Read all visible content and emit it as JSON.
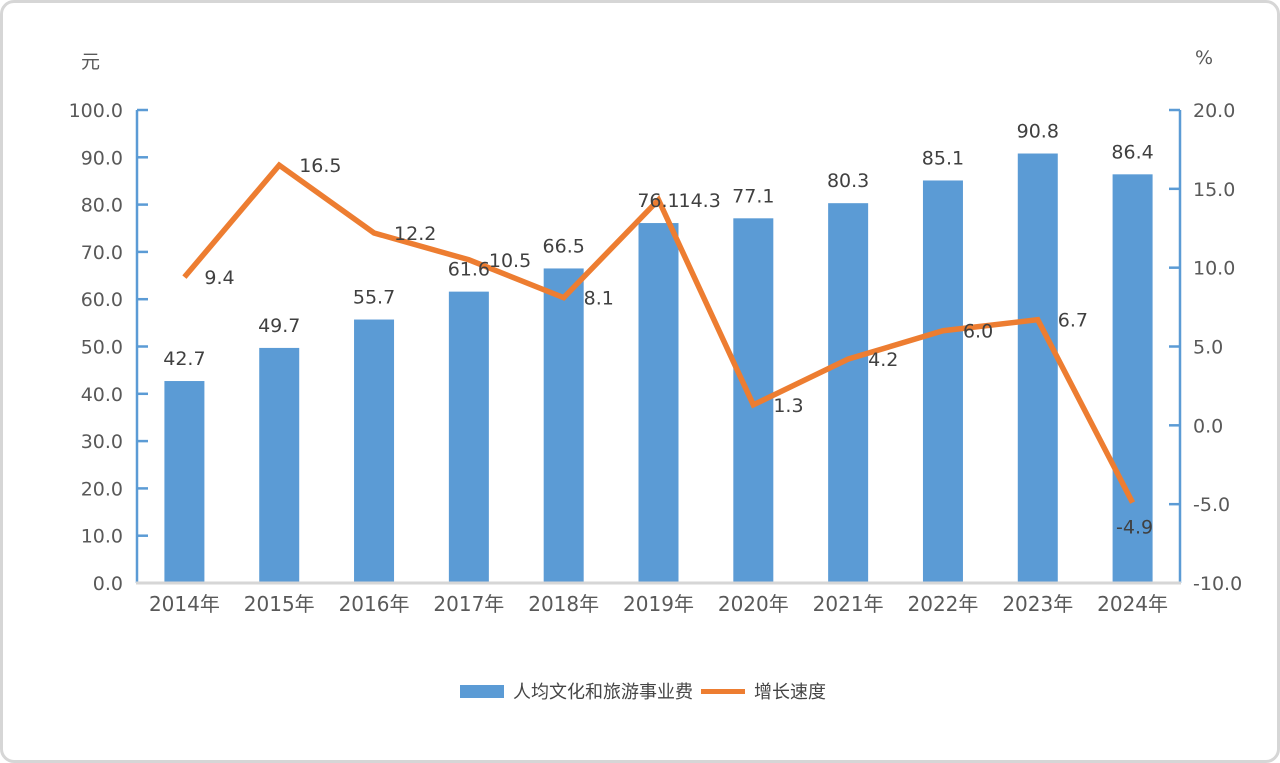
{
  "chart_data": {
    "type": "combo-bar-line",
    "title": "",
    "categories": [
      "2014年",
      "2015年",
      "2016年",
      "2017年",
      "2018年",
      "2019年",
      "2020年",
      "2021年",
      "2022年",
      "2023年",
      "2024年"
    ],
    "series": [
      {
        "name": "人均文化和旅游事业费",
        "type": "bar",
        "y_axis": "left",
        "color": "#5B9BD5",
        "values": [
          42.7,
          49.7,
          55.7,
          61.6,
          66.5,
          76.1,
          77.1,
          80.3,
          85.1,
          90.8,
          86.4
        ],
        "data_labels": [
          "42.7",
          "49.7",
          "55.7",
          "61.6",
          "66.5",
          "76.1",
          "77.1",
          "80.3",
          "85.1",
          "90.8",
          "86.4"
        ]
      },
      {
        "name": "增长速度",
        "type": "line",
        "y_axis": "right",
        "color": "#ED7D31",
        "values": [
          9.4,
          16.5,
          12.2,
          10.5,
          8.1,
          14.3,
          1.3,
          4.2,
          6.0,
          6.7,
          -4.9
        ],
        "data_labels": [
          "9.4",
          "16.5",
          "12.2",
          "10.5",
          "8.1",
          "14.3",
          "1.3",
          "4.2",
          "6.0",
          "6.7",
          "-4.9"
        ]
      }
    ],
    "left_axis": {
      "unit_label": "元",
      "min": 0,
      "max": 100,
      "step": 10,
      "tick_labels": [
        "100.0",
        "90.0",
        "80.0",
        "70.0",
        "60.0",
        "50.0",
        "40.0",
        "30.0",
        "20.0",
        "10.0",
        "0.0"
      ]
    },
    "right_axis": {
      "unit_label": "%",
      "min": -10,
      "max": 20,
      "step": 5,
      "tick_labels": [
        "20.0",
        "15.0",
        "10.0",
        "5.0",
        "0.0",
        "-5.0",
        "-10.0"
      ]
    },
    "legend": {
      "position": "bottom",
      "items": [
        "人均文化和旅游事业费",
        "增长速度"
      ]
    },
    "grid": false,
    "data_labels_visible": true,
    "colors": {
      "bar": "#5B9BD5",
      "line": "#ED7D31",
      "axis_line": "#5B9BD5",
      "baseline": "#D6D6D6",
      "tick_text": "#595959",
      "data_label_text": "#404040"
    }
  }
}
